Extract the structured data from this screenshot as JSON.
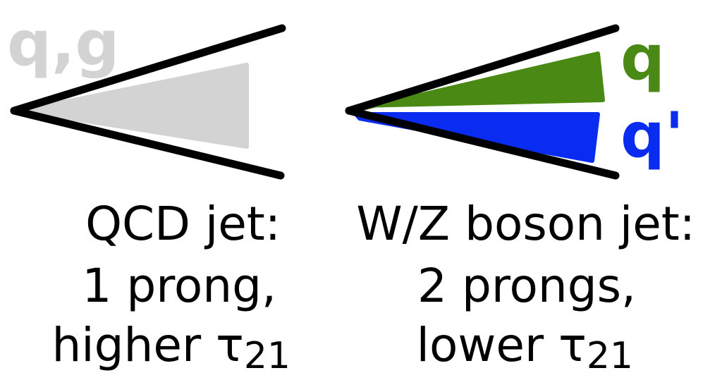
{
  "qcd_jet": {
    "parton_label": "q,g",
    "caption_line1": "QCD jet:",
    "caption_line2": "1 prong,",
    "caption_line3_text": "higher ",
    "caption_line3_tau": "τ",
    "caption_line3_sub": "21"
  },
  "boson_jet": {
    "quark_label": "q",
    "antiquark_label": "q'",
    "caption_line1": "W/Z boson jet:",
    "caption_line2": "2 prongs,",
    "caption_line3_text": "lower ",
    "caption_line3_tau": "τ",
    "caption_line3_sub": "21"
  },
  "colors": {
    "cone_lines": "#000000",
    "qcd_prong": "#d3d3d3",
    "qcd_label": "#d3d3d3",
    "quark_prong": "#4a8a14",
    "antiquark_prong": "#0a2cf0",
    "caption_text": "#000000"
  }
}
